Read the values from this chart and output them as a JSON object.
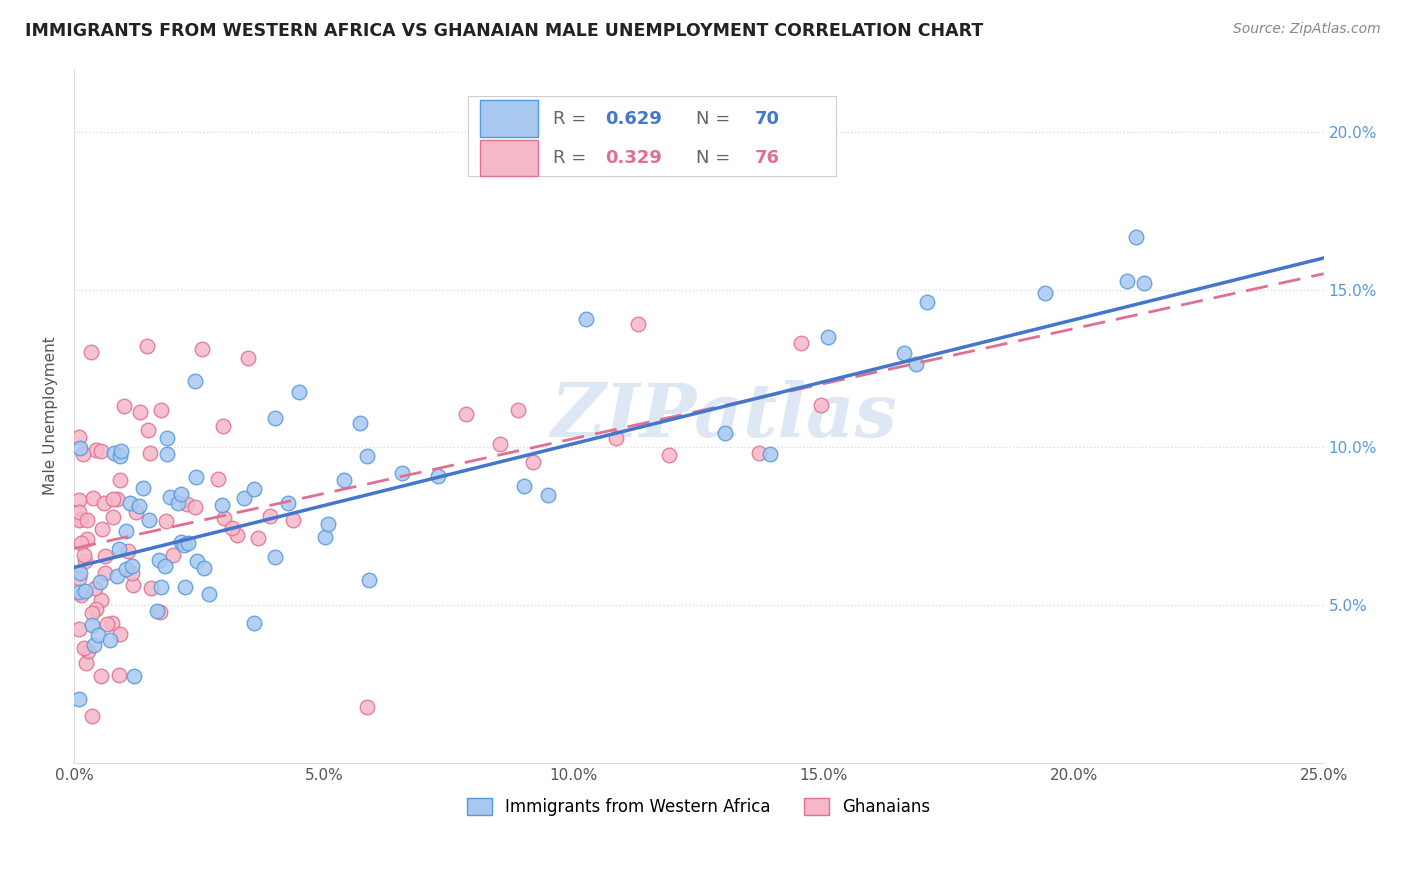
{
  "title": "IMMIGRANTS FROM WESTERN AFRICA VS GHANAIAN MALE UNEMPLOYMENT CORRELATION CHART",
  "source": "Source: ZipAtlas.com",
  "ylabel": "Male Unemployment",
  "xlim": [
    0,
    0.25
  ],
  "ylim": [
    0,
    0.22
  ],
  "xticks": [
    0.0,
    0.05,
    0.1,
    0.15,
    0.2,
    0.25
  ],
  "xtick_labels": [
    "0.0%",
    "5.0%",
    "10.0%",
    "15.0%",
    "20.0%",
    "25.0%"
  ],
  "yticks_right": [
    0.05,
    0.1,
    0.15,
    0.2
  ],
  "ytick_labels_right": [
    "5.0%",
    "10.0%",
    "15.0%",
    "20.0%"
  ],
  "legend1_label": "Immigrants from Western Africa",
  "legend2_label": "Ghanaians",
  "R1": 0.629,
  "N1": 70,
  "R2": 0.329,
  "N2": 76,
  "blue_fill": "#A8C8F0",
  "blue_edge": "#5599DD",
  "pink_fill": "#F5B8C8",
  "pink_edge": "#E07090",
  "blue_line": "#4477CC",
  "pink_line": "#E07090",
  "watermark": "ZIPatlas",
  "grid_color": "#DDDDDD",
  "title_color": "#222222",
  "source_color": "#888888",
  "ylabel_color": "#555555",
  "tick_color": "#555555",
  "right_tick_color": "#5599DD",
  "blue_line_start_x": 0.0,
  "blue_line_start_y": 0.062,
  "blue_line_end_x": 0.25,
  "blue_line_end_y": 0.16,
  "pink_line_start_x": 0.0,
  "pink_line_start_y": 0.068,
  "pink_line_end_x": 0.25,
  "pink_line_end_y": 0.155
}
